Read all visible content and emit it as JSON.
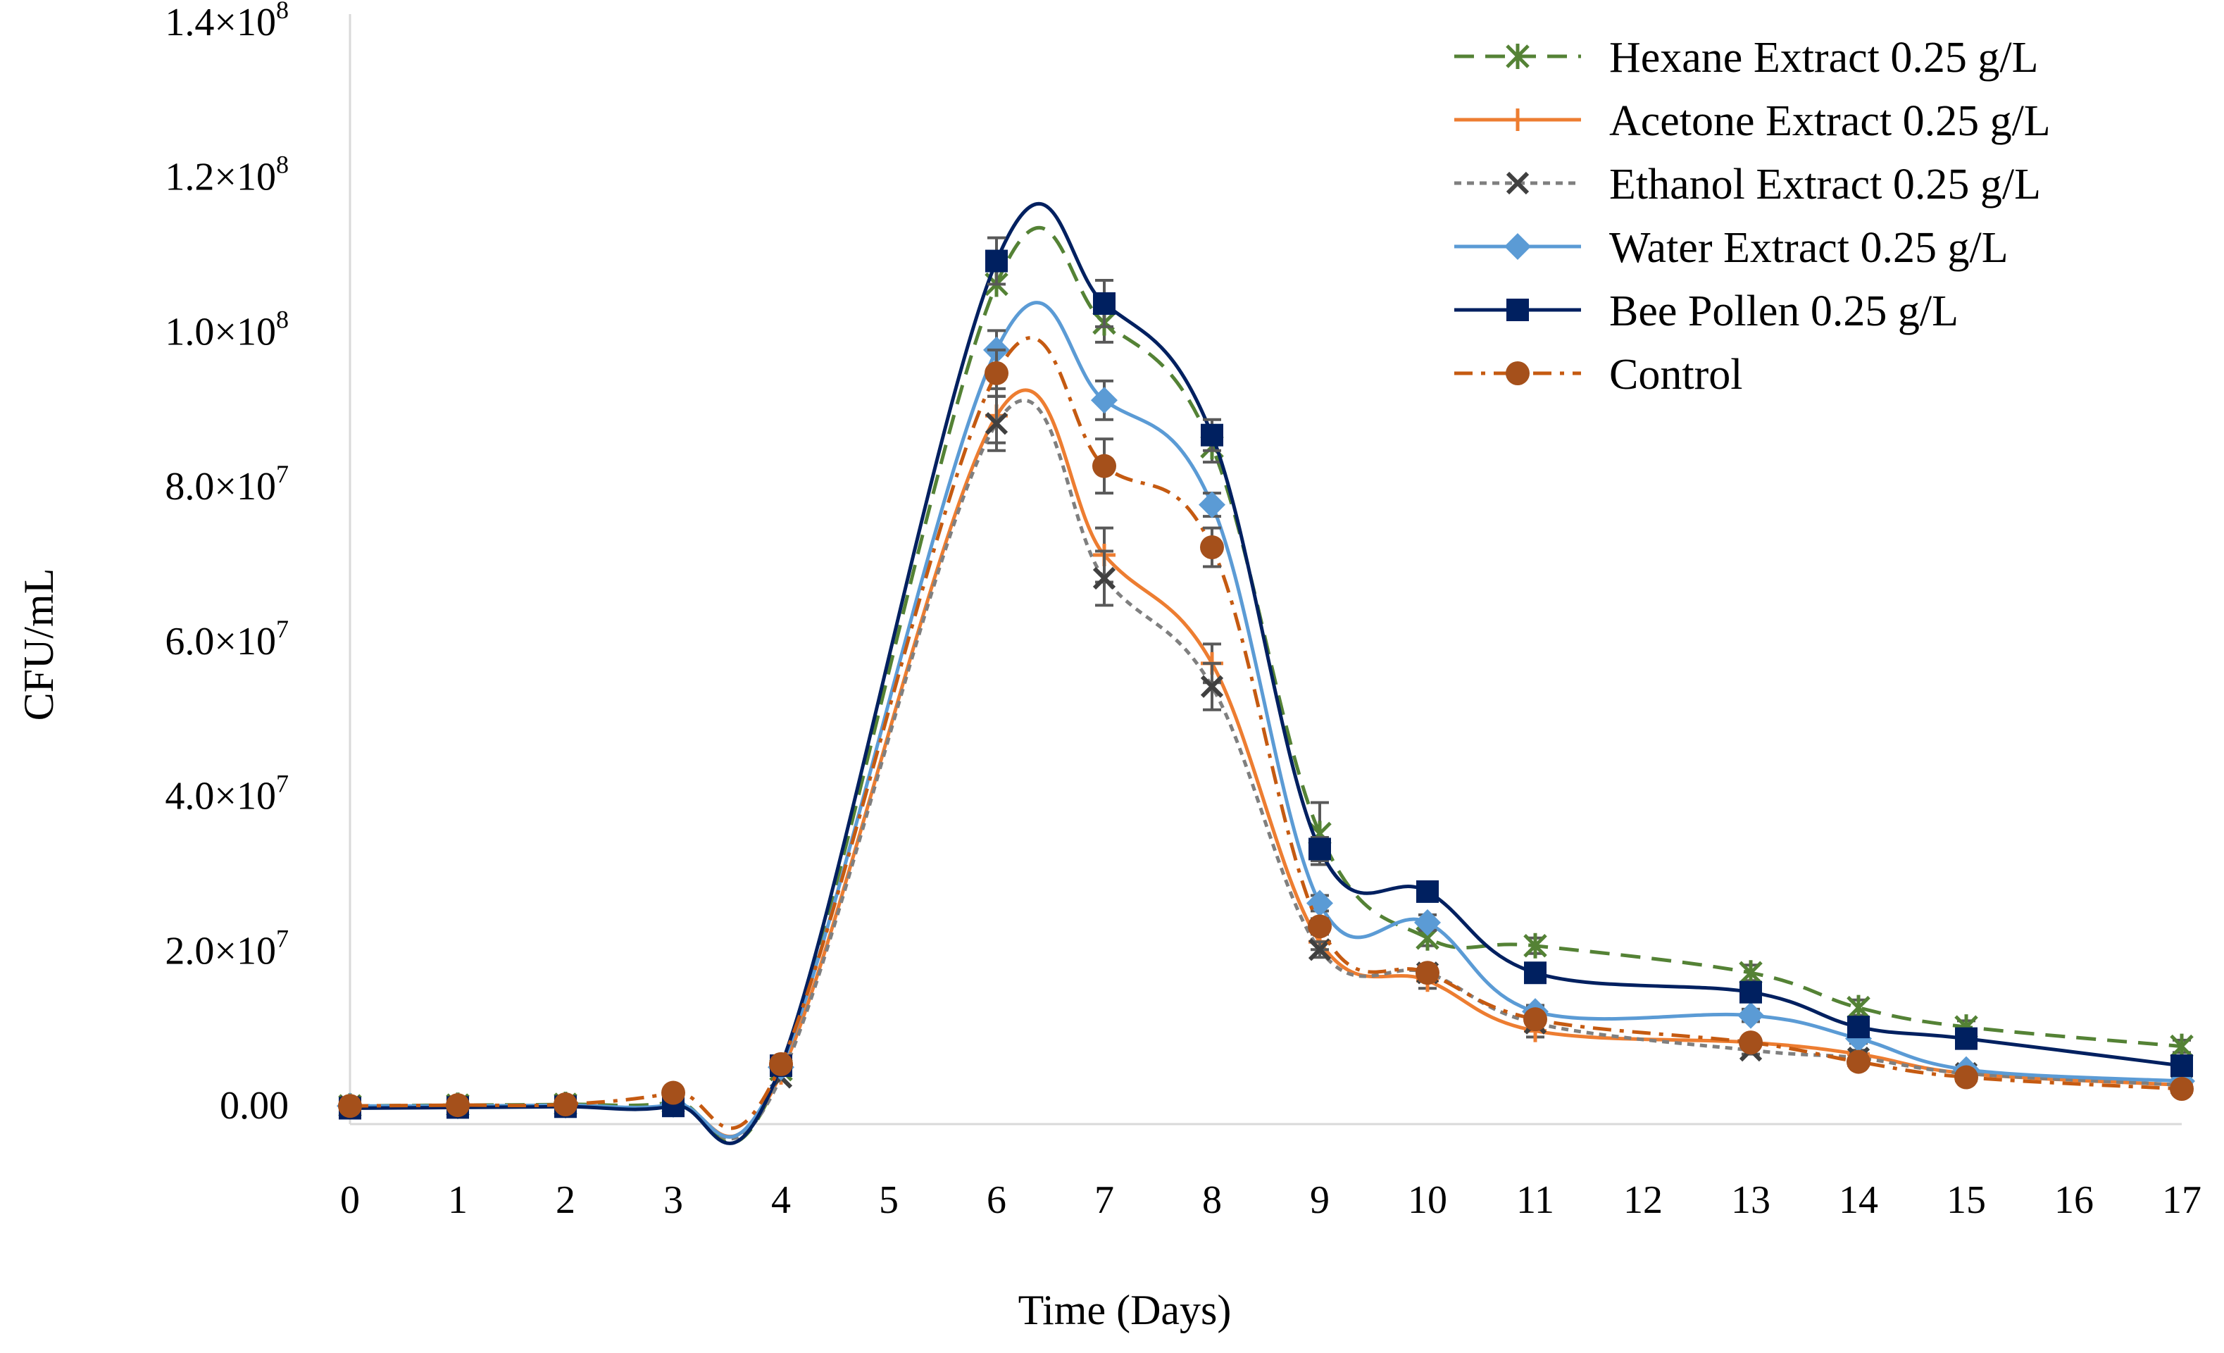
{
  "chart_data": {
    "type": "line",
    "title": "",
    "xlabel": "Time (Days)",
    "ylabel": "CFU/mL",
    "x_ticks": [
      "0",
      "1",
      "2",
      "3",
      "4",
      "5",
      "6",
      "7",
      "8",
      "9",
      "10",
      "11",
      "12",
      "13",
      "14",
      "15",
      "16",
      "17"
    ],
    "y_ticks": [
      {
        "value": 0,
        "mantissa": "0.00",
        "exp": ""
      },
      {
        "value": 20000000,
        "mantissa": "2.0×10",
        "exp": "7"
      },
      {
        "value": 40000000,
        "mantissa": "4.0×10",
        "exp": "7"
      },
      {
        "value": 60000000,
        "mantissa": "6.0×10",
        "exp": "7"
      },
      {
        "value": 80000000,
        "mantissa": "8.0×10",
        "exp": "7"
      },
      {
        "value": 100000000,
        "mantissa": "1.0×10",
        "exp": "8"
      },
      {
        "value": 120000000,
        "mantissa": "1.2×10",
        "exp": "8"
      },
      {
        "value": 140000000,
        "mantissa": "1.4×10",
        "exp": "8"
      }
    ],
    "ylim": [
      -3000000,
      140000000
    ],
    "xlim": [
      0,
      17
    ],
    "grid": false,
    "legend_position": "top-right",
    "series": [
      {
        "name": "Hexane Extract 0.25 g/L",
        "color": "#548235",
        "dash": "dashed",
        "marker": "asterisk",
        "x": [
          0,
          1,
          2,
          3,
          4,
          6,
          7,
          8,
          9,
          10,
          11,
          13,
          14,
          15,
          17
        ],
        "y": [
          -200000,
          -100000,
          0,
          300000,
          4500000,
          106000000,
          101000000,
          85000000,
          35000000,
          21500000,
          20500000,
          17000000,
          12500000,
          10000000,
          7500000
        ],
        "err": [
          0,
          0,
          0,
          0,
          0,
          0,
          2500000,
          2000000,
          4000000,
          1000000,
          1000000,
          1000000,
          1000000,
          800000,
          800000
        ]
      },
      {
        "name": "Acetone Extract 0.25 g/L",
        "color": "#ED7D31",
        "dash": "solid",
        "marker": "plus",
        "x": [
          0,
          1,
          2,
          3,
          4,
          6,
          7,
          8,
          9,
          10,
          11,
          13,
          14,
          15,
          17
        ],
        "y": [
          -300000,
          -300000,
          -200000,
          -100000,
          4000000,
          89000000,
          71000000,
          57000000,
          21000000,
          16000000,
          9500000,
          8000000,
          6500000,
          4000000,
          2500000
        ],
        "err": [
          0,
          0,
          0,
          0,
          0,
          3500000,
          3500000,
          2500000,
          1000000,
          1000000,
          800000,
          500000,
          500000,
          500000,
          300000
        ]
      },
      {
        "name": "Ethanol Extract 0.25 g/L",
        "color": "#7F7F7F",
        "dash": "dotted",
        "marker": "cross",
        "markerColor": "#404040",
        "x": [
          0,
          1,
          2,
          3,
          4,
          6,
          7,
          8,
          9,
          10,
          11,
          13,
          14,
          15,
          17
        ],
        "y": [
          -300000,
          -300000,
          -200000,
          -100000,
          3500000,
          88000000,
          68000000,
          54000000,
          20000000,
          17000000,
          10500000,
          7000000,
          6000000,
          4000000,
          2500000
        ],
        "err": [
          0,
          0,
          0,
          0,
          0,
          3500000,
          3500000,
          3000000,
          1000000,
          1000000,
          800000,
          500000,
          500000,
          500000,
          300000
        ]
      },
      {
        "name": "Water Extract 0.25 g/L",
        "color": "#5B9BD5",
        "dash": "solid",
        "marker": "diamond",
        "x": [
          0,
          1,
          2,
          3,
          4,
          6,
          7,
          8,
          9,
          10,
          11,
          13,
          14,
          15,
          17
        ],
        "y": [
          -200000,
          -200000,
          -100000,
          0,
          4800000,
          97500000,
          91000000,
          77500000,
          26000000,
          23500000,
          12000000,
          11500000,
          8500000,
          4500000,
          3000000
        ],
        "err": [
          0,
          0,
          0,
          0,
          0,
          2500000,
          2500000,
          1500000,
          1000000,
          1000000,
          800000,
          800000,
          600000,
          400000,
          300000
        ]
      },
      {
        "name": "Bee Pollen 0.25 g/L",
        "color": "#002060",
        "dash": "solid",
        "marker": "square",
        "x": [
          0,
          1,
          2,
          3,
          4,
          6,
          7,
          8,
          9,
          10,
          11,
          13,
          14,
          15,
          17
        ],
        "y": [
          -500000,
          -400000,
          -300000,
          -200000,
          5000000,
          109000000,
          103500000,
          86500000,
          33000000,
          27500000,
          17000000,
          14500000,
          10000000,
          8500000,
          5000000
        ],
        "err": [
          0,
          0,
          0,
          0,
          0,
          3000000,
          3000000,
          2000000,
          1500000,
          1000000,
          800000,
          800000,
          600000,
          500000,
          400000
        ]
      },
      {
        "name": "Control",
        "color": "#C55A11",
        "dash": "dashdot",
        "marker": "circle",
        "markerColor": "#A5501B",
        "x": [
          0,
          1,
          2,
          3,
          4,
          6,
          7,
          8,
          9,
          10,
          11,
          13,
          14,
          15,
          17
        ],
        "y": [
          -200000,
          -100000,
          0,
          1500000,
          5200000,
          94500000,
          82500000,
          72000000,
          23000000,
          17000000,
          11000000,
          8000000,
          5500000,
          3500000,
          2000000
        ],
        "err": [
          0,
          0,
          0,
          0,
          0,
          3000000,
          3500000,
          2500000,
          1000000,
          1000000,
          800000,
          500000,
          500000,
          400000,
          300000
        ]
      }
    ]
  }
}
